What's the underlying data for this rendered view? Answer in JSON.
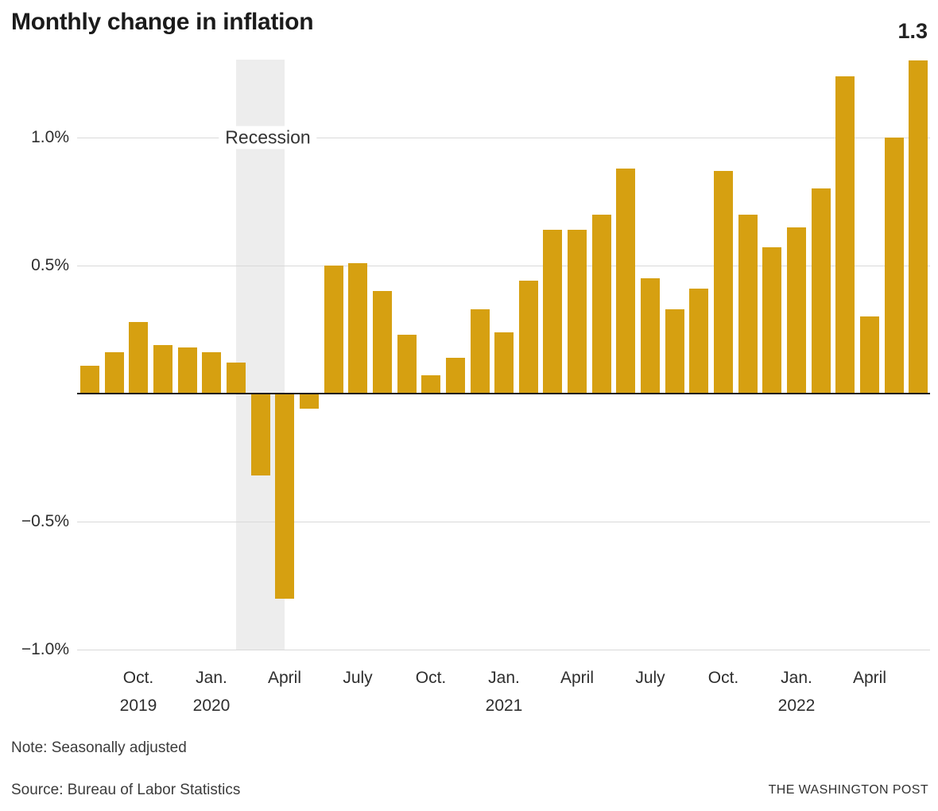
{
  "header": {
    "title": "Monthly change in inflation"
  },
  "footer": {
    "note": "Note: Seasonally adjusted",
    "source": "Source: Bureau of Labor Statistics",
    "credit": "THE WASHINGTON POST"
  },
  "colors": {
    "bar": "#d6a011",
    "recession_band": "#ededed",
    "gridline": "#d9d9d9",
    "zero_line": "#1d1d1d"
  },
  "chart_data": {
    "type": "bar",
    "title": "Monthly change in inflation",
    "unit": "% change from previous month",
    "x": [
      "Aug. 2019",
      "Sept. 2019",
      "Oct. 2019",
      "Nov. 2019",
      "Dec. 2019",
      "Jan. 2020",
      "Feb. 2020",
      "March 2020",
      "April 2020",
      "May 2020",
      "June 2020",
      "July 2020",
      "Aug. 2020",
      "Sept. 2020",
      "Oct. 2020",
      "Nov. 2020",
      "Dec. 2020",
      "Jan. 2021",
      "Feb. 2021",
      "March 2021",
      "April 2021",
      "May 2021",
      "June 2021",
      "July 2021",
      "Aug. 2021",
      "Sept. 2021",
      "Oct. 2021",
      "Nov. 2021",
      "Dec. 2021",
      "Jan. 2022",
      "Feb. 2022",
      "March 2022",
      "April 2022",
      "May 2022",
      "June 2022"
    ],
    "values": [
      0.11,
      0.16,
      0.28,
      0.19,
      0.18,
      0.16,
      0.12,
      -0.32,
      -0.8,
      -0.06,
      0.5,
      0.51,
      0.4,
      0.23,
      0.07,
      0.14,
      0.33,
      0.24,
      0.44,
      0.64,
      0.64,
      0.7,
      0.88,
      0.45,
      0.33,
      0.41,
      0.87,
      0.7,
      0.57,
      0.65,
      0.8,
      1.24,
      0.3,
      1.0,
      1.3
    ],
    "ylim": [
      -1.0,
      1.3
    ],
    "grid": true,
    "yticks": [
      {
        "label": "1.0%",
        "value": 1.0
      },
      {
        "label": "0.5%",
        "value": 0.5
      },
      {
        "label": "−0.5%",
        "value": -0.5
      },
      {
        "label": "−1.0%",
        "value": -1.0
      }
    ],
    "xticks": [
      {
        "index": 2,
        "label": "Oct.",
        "year": "2019"
      },
      {
        "index": 5,
        "label": "Jan.",
        "year": "2020"
      },
      {
        "index": 8,
        "label": "April",
        "year": ""
      },
      {
        "index": 11,
        "label": "July",
        "year": ""
      },
      {
        "index": 14,
        "label": "Oct.",
        "year": ""
      },
      {
        "index": 17,
        "label": "Jan.",
        "year": "2021"
      },
      {
        "index": 20,
        "label": "April",
        "year": ""
      },
      {
        "index": 23,
        "label": "July",
        "year": ""
      },
      {
        "index": 26,
        "label": "Oct.",
        "year": ""
      },
      {
        "index": 29,
        "label": "Jan.",
        "year": "2022"
      },
      {
        "index": 32,
        "label": "April",
        "year": ""
      }
    ],
    "recession_band": {
      "start_index": 6,
      "end_index": 8,
      "label": "Recession"
    },
    "last_value_label": "1.3",
    "legend": null
  }
}
